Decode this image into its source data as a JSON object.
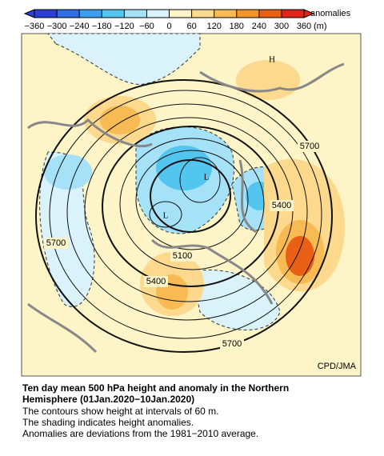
{
  "colorbar": {
    "ticks": [
      {
        "value": -360,
        "label": "−360"
      },
      {
        "value": -300,
        "label": "−300"
      },
      {
        "value": -240,
        "label": "−240"
      },
      {
        "value": -180,
        "label": "−180"
      },
      {
        "value": -120,
        "label": "−120"
      },
      {
        "value": -60,
        "label": "−60"
      },
      0,
      60,
      120,
      180,
      240,
      300,
      360
    ],
    "colors": [
      "#2b3fd6",
      "#2f6de6",
      "#3a9ff0",
      "#52c6ef",
      "#a6e2f7",
      "#daf3fb",
      "#fdf4c8",
      "#fcd98c",
      "#f8ba52",
      "#f29426",
      "#e95f14",
      "#e0241a"
    ],
    "label": "anomalies",
    "unit": "(m)"
  },
  "map": {
    "labels": [
      "H",
      "L",
      "L",
      "5700",
      "5400",
      "5700",
      "5100",
      "5400",
      "5700"
    ],
    "credit": "CPD/JMA"
  },
  "caption": {
    "title": [
      "Ten day mean 500 hPa height and anomaly in the Northern",
      "Hemisphere (01Jan.2020−10Jan.2020)"
    ],
    "notes": [
      "The contours show height at intervals of 60 m.",
      "The shading indicates height anomalies.",
      "Anomalies are deviations from the 1981−2010 average."
    ]
  }
}
